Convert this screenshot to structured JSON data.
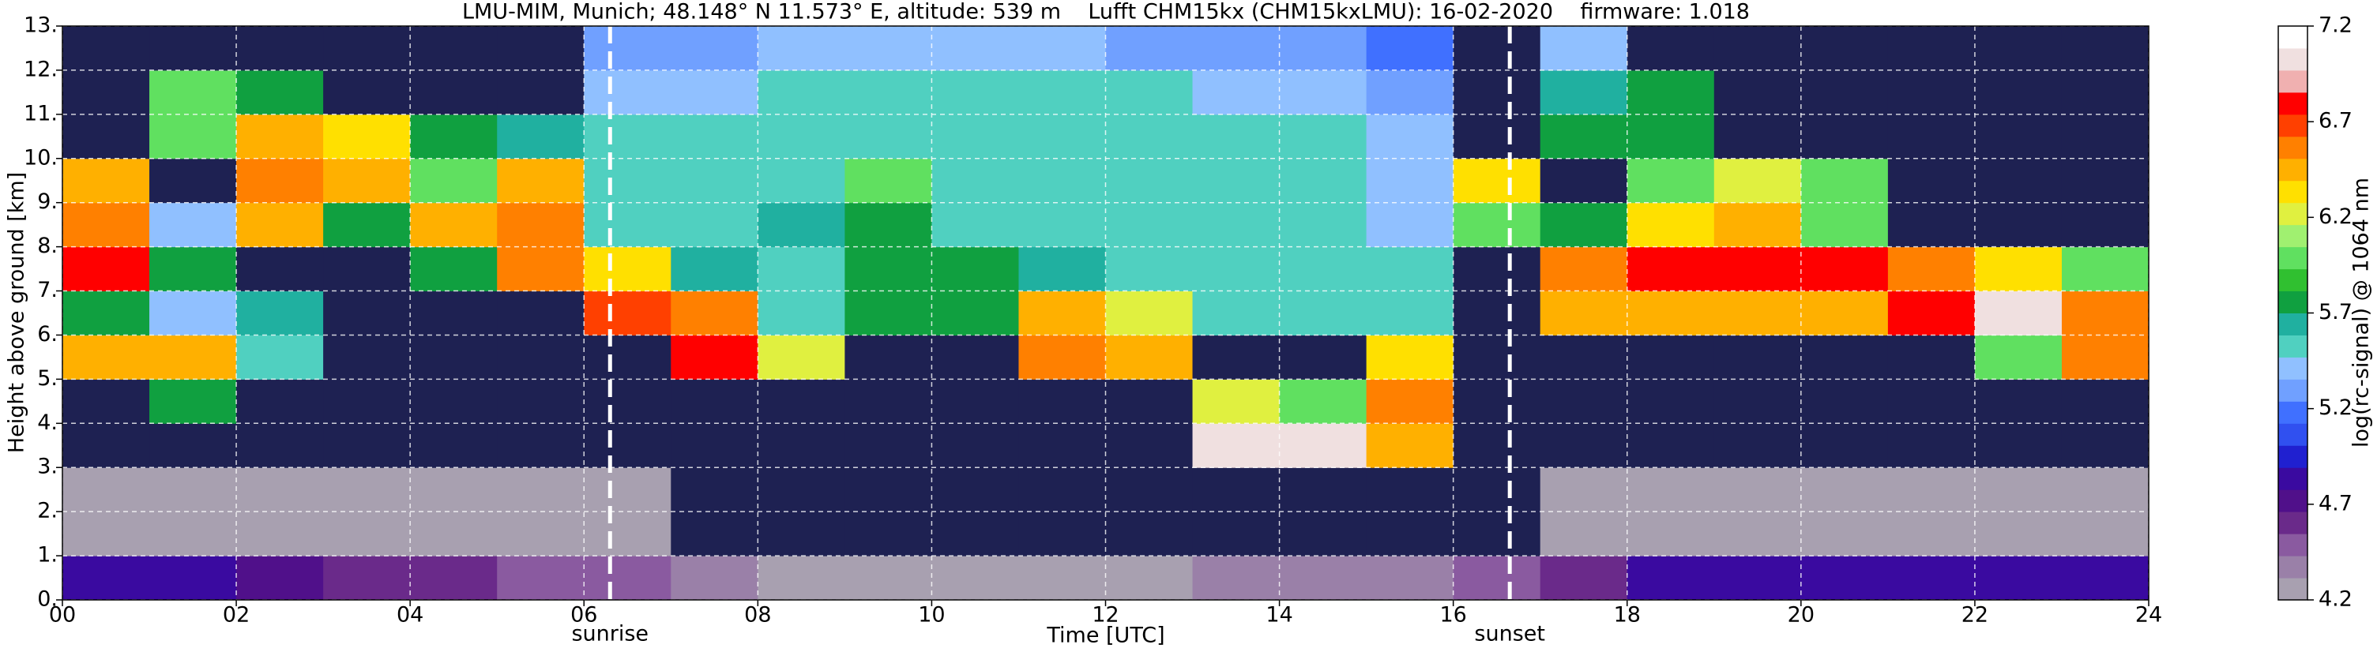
{
  "chart_data": {
    "type": "heatmap",
    "title": "LMU-MIM, Munich; 48.148° N 11.573° E, altitude: 539 m    Lufft CHM15kx (CHM15kxLMU): 16-02-2020    firmware: 1.018",
    "x_label": "Time [UTC]",
    "y_label": "Height above ground [km]",
    "xlim": [
      0,
      24
    ],
    "ylim": [
      0,
      13
    ],
    "xticks": [
      {
        "value": 0,
        "label": "00"
      },
      {
        "value": 2,
        "label": "02"
      },
      {
        "value": 4,
        "label": "04"
      },
      {
        "value": 6,
        "label": "06"
      },
      {
        "value": 8,
        "label": "08"
      },
      10,
      12,
      14,
      16,
      18,
      20,
      22,
      24
    ],
    "yticks": [
      {
        "value": 0,
        "label": "0."
      },
      {
        "value": 1,
        "label": "1."
      },
      {
        "value": 2,
        "label": "2."
      },
      {
        "value": 3,
        "label": "3."
      },
      {
        "value": 4,
        "label": "4."
      },
      {
        "value": 5,
        "label": "5."
      },
      {
        "value": 6,
        "label": "6."
      },
      {
        "value": 7,
        "label": "7."
      },
      {
        "value": 8,
        "label": "8."
      },
      {
        "value": 9,
        "label": "9."
      },
      {
        "value": 10,
        "label": "10."
      },
      {
        "value": 11,
        "label": "11."
      },
      {
        "value": 12,
        "label": "12."
      },
      {
        "value": 13,
        "label": "13."
      }
    ],
    "grid": true,
    "x_bins": [
      0,
      1,
      2,
      3,
      4,
      5,
      6,
      7,
      8,
      9,
      10,
      11,
      12,
      13,
      14,
      15,
      16,
      17,
      18,
      19,
      20,
      21,
      22,
      23,
      24
    ],
    "y_bins": [
      0,
      1,
      2,
      3,
      4,
      5,
      6,
      7,
      8,
      9,
      10,
      11,
      12,
      13
    ],
    "z": [
      [
        4.8,
        4.8,
        4.7,
        4.6,
        4.6,
        4.5,
        4.5,
        4.4,
        4.3,
        4.3,
        4.3,
        4.3,
        4.3,
        4.4,
        4.4,
        4.4,
        4.5,
        4.6,
        4.8,
        4.8,
        4.8,
        4.8,
        4.8,
        4.8
      ],
      [
        4.3,
        4.3,
        4.3,
        4.3,
        4.3,
        4.3,
        4.3,
        4.0,
        4.0,
        4.0,
        4.0,
        4.0,
        4.0,
        4.0,
        4.0,
        4.0,
        4.0,
        4.3,
        4.3,
        4.3,
        4.3,
        4.3,
        4.3,
        4.3
      ],
      [
        4.2,
        4.2,
        4.2,
        4.2,
        4.2,
        4.2,
        4.2,
        4.0,
        4.0,
        4.0,
        4.0,
        4.0,
        4.0,
        4.0,
        4.0,
        4.0,
        4.0,
        4.2,
        4.2,
        4.2,
        4.2,
        4.2,
        4.2,
        4.2
      ],
      [
        4.0,
        4.0,
        4.0,
        4.0,
        4.0,
        4.0,
        4.0,
        4.0,
        4.0,
        4.0,
        4.0,
        4.0,
        4.0,
        7.0,
        7.0,
        6.5,
        4.0,
        4.0,
        4.0,
        4.0,
        4.0,
        4.0,
        4.0,
        4.0
      ],
      [
        4.0,
        5.8,
        4.0,
        4.0,
        4.0,
        4.0,
        4.0,
        4.0,
        4.0,
        4.0,
        4.0,
        4.0,
        4.0,
        6.2,
        6.0,
        6.6,
        4.0,
        4.0,
        4.0,
        4.0,
        4.0,
        4.0,
        4.0,
        4.0
      ],
      [
        6.4,
        6.4,
        5.5,
        4.0,
        4.0,
        4.0,
        4.0,
        6.8,
        6.2,
        4.0,
        4.0,
        6.6,
        6.4,
        4.0,
        4.0,
        6.3,
        4.0,
        4.0,
        4.0,
        4.0,
        4.0,
        4.0,
        6.0,
        6.6
      ],
      [
        5.8,
        5.4,
        5.6,
        4.0,
        4.0,
        4.0,
        6.7,
        6.6,
        5.5,
        5.8,
        5.8,
        6.5,
        6.2,
        5.5,
        5.5,
        5.5,
        4.0,
        6.4,
        6.5,
        6.5,
        6.5,
        6.8,
        7.0,
        6.6
      ],
      [
        6.8,
        5.8,
        4.0,
        4.0,
        5.8,
        6.6,
        6.3,
        5.6,
        5.5,
        5.7,
        5.7,
        5.6,
        5.5,
        5.5,
        5.5,
        5.5,
        4.0,
        6.6,
        6.8,
        6.8,
        6.8,
        6.6,
        6.3,
        6.0
      ],
      [
        6.6,
        5.4,
        6.4,
        5.8,
        6.5,
        6.6,
        5.5,
        5.5,
        5.6,
        5.8,
        5.5,
        5.5,
        5.5,
        5.5,
        5.5,
        5.4,
        6.0,
        5.8,
        6.3,
        6.4,
        6.0,
        4.0,
        4.0,
        4.0
      ],
      [
        6.4,
        4.0,
        6.6,
        6.4,
        6.0,
        6.4,
        5.5,
        5.5,
        5.5,
        6.0,
        5.5,
        5.5,
        5.5,
        5.5,
        5.5,
        5.4,
        6.3,
        4.0,
        6.0,
        6.2,
        6.0,
        4.0,
        4.0,
        4.0
      ],
      [
        4.0,
        6.0,
        6.4,
        6.3,
        5.8,
        5.6,
        5.5,
        5.5,
        5.5,
        5.5,
        5.5,
        5.5,
        5.5,
        5.5,
        5.5,
        5.4,
        4.0,
        5.8,
        5.8,
        4.0,
        4.0,
        4.0,
        4.0,
        4.0
      ],
      [
        4.0,
        6.0,
        5.8,
        4.0,
        4.0,
        4.0,
        5.4,
        5.4,
        5.5,
        5.5,
        5.5,
        5.5,
        5.5,
        5.4,
        5.4,
        5.3,
        4.0,
        5.6,
        5.7,
        4.0,
        4.0,
        4.0,
        4.0,
        4.0
      ],
      [
        4.0,
        4.0,
        4.0,
        4.0,
        4.0,
        4.0,
        5.3,
        5.3,
        5.4,
        5.4,
        5.4,
        5.4,
        5.3,
        5.3,
        5.3,
        5.2,
        4.0,
        5.4,
        4.0,
        4.0,
        4.0,
        4.0,
        4.0,
        4.0
      ]
    ],
    "clim": [
      4.2,
      7.2
    ],
    "cticks": [
      4.2,
      4.7,
      5.2,
      5.7,
      6.2,
      6.7,
      7.2
    ],
    "colorbar_label": "log(rc-signal) @ 1064 nm",
    "under_color": "#1e2152",
    "colors": [
      "#a8a0b0",
      "#9a80a8",
      "#8a5aa0",
      "#6a2a8a",
      "#50108a",
      "#3a0aa0",
      "#2020d0",
      "#3050f0",
      "#4070ff",
      "#70a0ff",
      "#90c0ff",
      "#50d0c0",
      "#20b0a0",
      "#10a040",
      "#30c030",
      "#60e060",
      "#a0f070",
      "#e0f040",
      "#ffe000",
      "#ffb000",
      "#ff8000",
      "#ff4000",
      "#ff0000",
      "#f0b0b0",
      "#f0e0e0",
      "#ffffff"
    ],
    "annotations": [
      {
        "text": "sunrise",
        "x": 6.3
      },
      {
        "text": "sunset",
        "x": 16.65
      }
    ]
  }
}
